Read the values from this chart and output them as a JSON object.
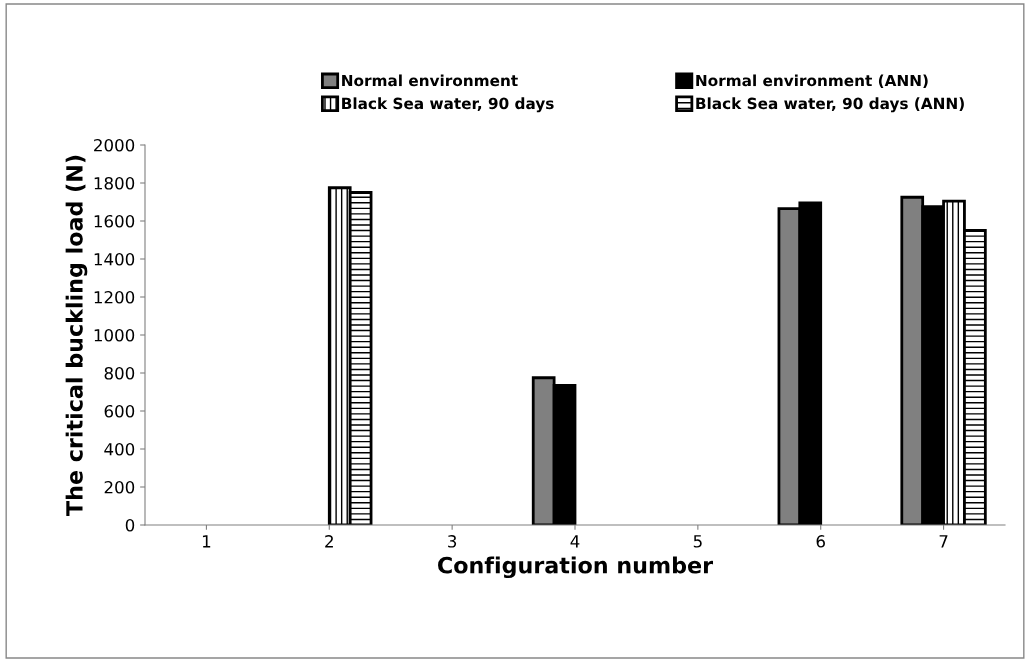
{
  "chart_data": {
    "type": "bar",
    "xlabel": "Configuration number",
    "ylabel": "The critical buckling load (N)",
    "categories": [
      "1",
      "2",
      "3",
      "4",
      "5",
      "6",
      "7"
    ],
    "series": [
      {
        "name": "Normal environment",
        "color": "#808080",
        "values": [
          null,
          null,
          null,
          775,
          null,
          1665,
          1725
        ]
      },
      {
        "name": "Normal environment (ANN)",
        "color": "#000000",
        "values": [
          null,
          null,
          null,
          735,
          null,
          1695,
          1675
        ]
      },
      {
        "name": "Black Sea water, 90 days",
        "color": "#000000",
        "values": [
          null,
          1775,
          null,
          null,
          null,
          null,
          1705
        ]
      },
      {
        "name": "Black Sea water, 90 days (ANN)",
        "color": "#000000",
        "values": [
          null,
          1750,
          null,
          null,
          null,
          null,
          1550
        ]
      }
    ],
    "ylim": [
      0,
      2000
    ],
    "yticks": [
      0,
      200,
      400,
      600,
      800,
      1000,
      1200,
      1400,
      1600,
      1800,
      2000
    ],
    "legend": "top",
    "grid": false
  }
}
